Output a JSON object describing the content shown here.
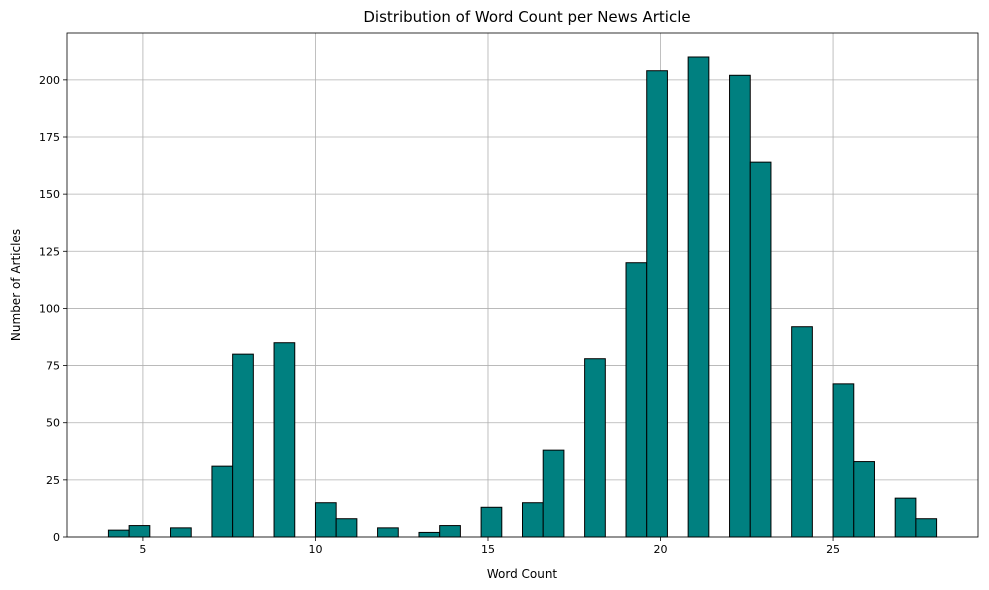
{
  "chart_data": {
    "type": "bar",
    "title": "Distribution of Word Count per News Article",
    "xlabel": "Word Count",
    "ylabel": "Number of Articles",
    "xlim": [
      2.8,
      29.2
    ],
    "ylim": [
      0,
      220.5
    ],
    "xticks": [
      5,
      10,
      15,
      20,
      25
    ],
    "yticks": [
      0,
      25,
      50,
      75,
      100,
      125,
      150,
      175,
      200
    ],
    "grid": true,
    "bar_color": "#008080",
    "bin_width": 0.6,
    "bins": [
      {
        "start": 4.0,
        "count": 3
      },
      {
        "start": 4.6,
        "count": 5
      },
      {
        "start": 5.8,
        "count": 4
      },
      {
        "start": 7.0,
        "count": 31
      },
      {
        "start": 7.6,
        "count": 80
      },
      {
        "start": 8.8,
        "count": 85
      },
      {
        "start": 10.0,
        "count": 15
      },
      {
        "start": 10.6,
        "count": 8
      },
      {
        "start": 11.8,
        "count": 4
      },
      {
        "start": 13.0,
        "count": 2
      },
      {
        "start": 13.6,
        "count": 5
      },
      {
        "start": 14.8,
        "count": 13
      },
      {
        "start": 16.0,
        "count": 15
      },
      {
        "start": 16.6,
        "count": 38
      },
      {
        "start": 17.8,
        "count": 78
      },
      {
        "start": 19.0,
        "count": 120
      },
      {
        "start": 19.6,
        "count": 204
      },
      {
        "start": 20.8,
        "count": 210
      },
      {
        "start": 22.0,
        "count": 202
      },
      {
        "start": 22.6,
        "count": 164
      },
      {
        "start": 23.8,
        "count": 92
      },
      {
        "start": 25.0,
        "count": 67
      },
      {
        "start": 25.6,
        "count": 33
      },
      {
        "start": 26.8,
        "count": 17
      },
      {
        "start": 27.4,
        "count": 8
      }
    ]
  }
}
